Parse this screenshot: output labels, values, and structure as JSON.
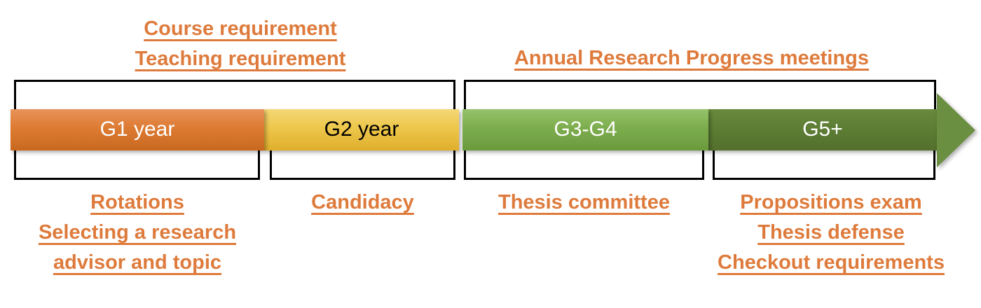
{
  "timeline": {
    "segments": [
      {
        "label": "G1 year",
        "fill": "#DD7B33",
        "text_color": "#FFFFFF"
      },
      {
        "label": "G2 year",
        "fill": "#EDC74B",
        "text_color": "#000000"
      },
      {
        "label": "G3-G4",
        "fill": "#7CAD4D",
        "text_color": "#FFFFFF"
      },
      {
        "label": "G5+",
        "fill": "#5B7B33",
        "text_color": "#FFFFFF"
      }
    ],
    "arrowhead_color": "#6B8F41",
    "bracket_color": "#000000"
  },
  "annotations": {
    "accent_color": "#DE7B3C",
    "above": [
      {
        "lines": [
          "Course requirement",
          "Teaching requirement"
        ]
      },
      {
        "lines": [
          "Annual Research Progress meetings"
        ]
      }
    ],
    "below": [
      {
        "lines": [
          "Rotations",
          "Selecting a research advisor and topic"
        ]
      },
      {
        "lines": [
          "Candidacy"
        ]
      },
      {
        "lines": [
          "Thesis committee"
        ]
      },
      {
        "lines": [
          "Propositions exam",
          "Thesis defense",
          "Checkout requirements"
        ]
      }
    ]
  }
}
